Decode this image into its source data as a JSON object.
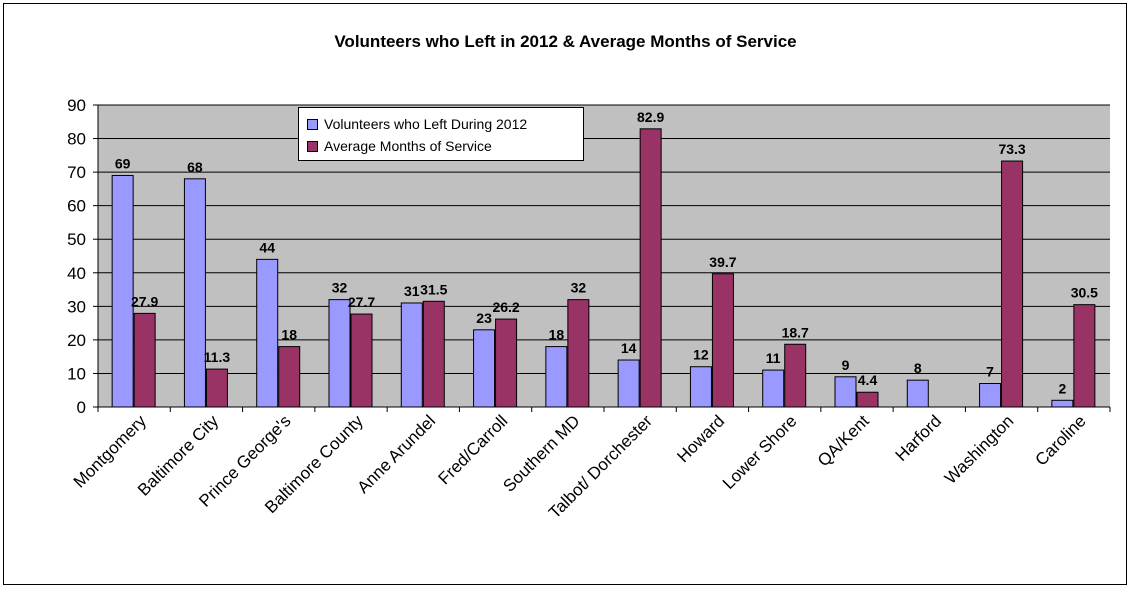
{
  "chart_data": {
    "type": "bar",
    "title": "Volunteers who Left in 2012 & Average Months of Service",
    "xlabel": "",
    "ylabel": "",
    "ylim": [
      0,
      90
    ],
    "yticks": [
      0,
      10,
      20,
      30,
      40,
      50,
      60,
      70,
      80,
      90
    ],
    "grid": true,
    "legend_position": "top-left inside plot",
    "categories": [
      "Montgomery",
      "Baltimore City",
      "Prince George's",
      "Baltimore County",
      "Anne Arundel",
      "Fred/Carroll",
      "Southern MD",
      "Talbot/ Dorchester",
      "Howard",
      "Lower Shore",
      "QA/Kent",
      "Harford",
      "Washington",
      "Caroline"
    ],
    "series": [
      {
        "name": "Volunteers who Left During 2012",
        "color": "#9999ff",
        "values": [
          69,
          68,
          44,
          32,
          31,
          23,
          18,
          14,
          12,
          11,
          9,
          8,
          7,
          2
        ],
        "labels": [
          "69",
          "68",
          "44",
          "32",
          "31",
          "23",
          "18",
          "14",
          "12",
          "11",
          "9",
          "8",
          "7",
          "2"
        ]
      },
      {
        "name": "Average Months of Service",
        "color": "#993366",
        "values": [
          27.9,
          11.3,
          18,
          27.7,
          31.5,
          26.2,
          32,
          82.9,
          39.7,
          18.7,
          4.4,
          null,
          73.3,
          30.5
        ],
        "labels": [
          "27.9",
          "11.3",
          "18",
          "27.7",
          "31.5",
          "26.2",
          "32",
          "82.9",
          "39.7",
          "18.7",
          "4.4",
          "",
          "73.3",
          "30.5"
        ]
      }
    ]
  },
  "colors": {
    "plot_background": "#c0c0c0",
    "gridline": "#000000"
  }
}
